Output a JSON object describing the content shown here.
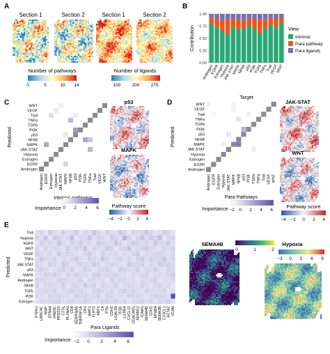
{
  "panels": {
    "A": {
      "letter": "A",
      "left_group": {
        "sections": [
          "Section 1",
          "Section 2"
        ],
        "legend_title": "Number of pathways",
        "ticks": [
          "0",
          "5",
          "10",
          "14"
        ]
      },
      "right_group": {
        "sections": [
          "Section 1",
          "Section 2"
        ],
        "legend_title": "Number of ligands",
        "ticks": [
          "100",
          "200",
          "275"
        ]
      },
      "colors": {
        "low": "#2c7bb6",
        "mid": "#ffffbf",
        "high": "#d7191c"
      }
    },
    "B": {
      "letter": "B"
    },
    "C": {
      "letter": "C",
      "maps": [
        "p53",
        "MAPK"
      ],
      "legend_title": "Importance",
      "ticks": [
        "0",
        "2",
        "4",
        "6"
      ]
    },
    "D": {
      "letter": "D",
      "maps": [
        "JAK-STAT",
        "WNT"
      ],
      "legend_title": "Importance",
      "ticks": [
        "−2",
        "0",
        "2",
        "4",
        "6"
      ]
    },
    "E": {
      "letter": "E",
      "maps": [
        "SEMA4B",
        "Hypoxia"
      ],
      "legend_title": "Importance",
      "ticks": [
        "−2",
        "0",
        "2",
        "4",
        "6"
      ]
    },
    "pathway_score": {
      "title": "Pathway score",
      "ticks": [
        "−4",
        "−2",
        "0",
        "2",
        "4"
      ]
    },
    "sema4b_scale": {
      "ticks": [
        "0",
        "1",
        "2"
      ]
    },
    "hypoxia_scale": {
      "ticks": [
        "−3",
        "0",
        "3",
        "6",
        "9"
      ]
    }
  },
  "chart_data": [
    {
      "type": "bar",
      "panel": "B",
      "stacked": true,
      "xlabel": "Target",
      "ylabel": "Contribution",
      "ylim": [
        0,
        1
      ],
      "yticks": [
        "0.00",
        "0.25",
        "0.50",
        "0.75",
        "1.00"
      ],
      "legend_title": "View",
      "legend_position": "right",
      "categories": [
        "Androgen",
        "EGFR",
        "Estrogen",
        "Hypoxia",
        "JAK.STAT",
        "MAPK",
        "NFkB",
        "p53",
        "PI3K",
        "TGFb",
        "TNFa",
        "Trail",
        "VEGF",
        "WNT"
      ],
      "series": [
        {
          "name": "Intrinsic",
          "color": "#2aa876",
          "values": [
            0.8,
            0.72,
            0.65,
            0.58,
            0.72,
            0.68,
            0.7,
            0.75,
            0.7,
            0.6,
            0.7,
            0.78,
            0.72,
            0.82
          ]
        },
        {
          "name": "Para pathway",
          "color": "#e8591e",
          "values": [
            0.12,
            0.18,
            0.22,
            0.3,
            0.18,
            0.2,
            0.18,
            0.15,
            0.2,
            0.28,
            0.18,
            0.14,
            0.18,
            0.1
          ]
        },
        {
          "name": "Para ligands",
          "color": "#7570b3",
          "values": [
            0.08,
            0.1,
            0.13,
            0.12,
            0.1,
            0.12,
            0.12,
            0.1,
            0.1,
            0.12,
            0.12,
            0.08,
            0.1,
            0.08
          ]
        }
      ]
    },
    {
      "type": "heatmap",
      "panel": "C",
      "xlabel": "Intrinsic pathways",
      "ylabel": "Predicted",
      "rows": [
        "WNT",
        "VEGF",
        "Trail",
        "TNFa",
        "TGFb",
        "PI3K",
        "p53",
        "NFkB",
        "MAPK",
        "JAK.STAT",
        "Hypoxia",
        "Estrogen",
        "EGFR",
        "Androgen"
      ],
      "columns": [
        "Androgen",
        "EGFR",
        "Estrogen",
        "Hypoxia",
        "JAK.STAT",
        "MAPK",
        "NFkB",
        "p53",
        "PI3K",
        "TGFb",
        "TNFa",
        "Trail",
        "VEGF",
        "WNT"
      ],
      "values": [
        [
          0,
          0,
          0,
          0,
          0.5,
          0,
          0,
          0,
          0,
          0,
          0,
          0,
          0,
          null
        ],
        [
          0,
          0,
          0,
          0.8,
          0,
          0,
          0,
          0,
          0,
          0,
          0,
          0,
          null,
          0
        ],
        [
          0,
          0,
          1.2,
          0,
          0,
          0,
          0,
          0.6,
          0,
          0,
          0,
          null,
          0,
          0
        ],
        [
          0,
          0,
          0,
          0,
          0,
          0,
          2.5,
          0,
          0,
          0,
          null,
          0,
          0,
          0
        ],
        [
          0,
          0,
          0,
          0,
          0,
          0,
          0,
          0,
          0,
          null,
          0,
          0,
          0,
          0
        ],
        [
          0,
          0,
          0,
          0,
          0,
          0,
          0,
          3.5,
          null,
          0,
          0,
          0,
          0,
          0
        ],
        [
          0,
          0,
          0,
          0,
          0,
          0.8,
          0,
          null,
          0,
          0,
          0,
          0,
          0,
          0
        ],
        [
          0,
          0,
          0,
          0,
          0,
          0,
          null,
          0,
          0,
          3.0,
          2.0,
          0,
          0,
          0
        ],
        [
          0,
          3.0,
          0,
          0,
          0,
          null,
          0,
          0,
          0,
          0,
          0,
          0,
          0,
          0
        ],
        [
          0,
          0,
          0,
          0,
          null,
          0,
          0,
          0,
          0,
          0,
          2.5,
          0,
          0,
          0
        ],
        [
          0,
          0,
          0,
          null,
          0,
          0,
          0,
          0,
          0,
          0,
          0,
          0,
          0,
          0
        ],
        [
          0,
          0,
          null,
          0,
          0,
          0,
          0,
          0,
          0,
          0,
          0,
          0,
          0,
          0
        ],
        [
          0,
          null,
          0,
          0,
          0,
          1.5,
          0,
          0,
          0,
          0,
          0,
          0,
          0,
          0
        ],
        [
          null,
          0,
          0,
          0,
          0,
          0,
          0,
          0,
          0,
          0,
          0,
          0,
          0,
          0
        ]
      ]
    },
    {
      "type": "heatmap",
      "panel": "D",
      "xlabel": "Para Pathways",
      "ylabel": "Predicted",
      "rows": [
        "WNT",
        "VEGF",
        "Trail",
        "TNFa",
        "TGFb",
        "PI3K",
        "p53",
        "NFkB",
        "MAPK",
        "JAK.STAT",
        "Hypoxia",
        "Estrogen",
        "EGFR",
        "Androgen"
      ],
      "columns": [
        "Androgen",
        "EGFR",
        "Estrogen",
        "Hypoxia",
        "JAK.STAT",
        "MAPK",
        "NFkB",
        "p53",
        "PI3K",
        "TGFb",
        "TNFa",
        "Trail",
        "VEGF",
        "WNT"
      ],
      "values": [
        [
          0.5,
          0,
          0,
          0,
          0,
          0.3,
          0,
          0,
          0,
          0,
          0,
          0,
          0,
          null
        ],
        [
          0,
          0,
          0,
          0,
          0,
          0.4,
          0,
          0,
          0,
          0,
          0,
          0,
          null,
          0
        ],
        [
          0,
          0.3,
          0,
          0,
          0,
          0,
          0,
          0,
          0.5,
          0,
          0,
          null,
          0,
          0
        ],
        [
          0,
          0,
          0,
          0,
          0,
          0,
          1.0,
          0,
          0,
          0,
          null,
          0,
          0,
          0
        ],
        [
          0,
          0,
          0,
          0,
          0,
          0,
          0,
          0,
          0,
          null,
          0,
          0,
          0,
          0
        ],
        [
          0,
          0,
          0,
          0,
          0,
          0,
          0,
          2.5,
          null,
          0,
          0,
          0,
          0,
          0
        ],
        [
          0,
          0,
          0,
          0,
          0.8,
          0,
          0,
          null,
          0,
          0,
          0,
          0,
          0,
          0
        ],
        [
          0,
          0,
          0,
          0,
          0,
          0,
          null,
          0,
          0,
          0,
          0,
          0,
          0,
          0
        ],
        [
          0,
          0,
          0,
          0.5,
          0,
          null,
          4.5,
          0,
          0,
          0,
          0,
          0,
          0,
          0
        ],
        [
          0,
          0,
          0,
          0,
          null,
          0,
          0,
          0,
          0,
          0.6,
          0,
          0,
          0,
          0
        ],
        [
          0,
          0,
          0,
          null,
          0,
          0,
          0,
          0,
          0,
          0,
          0,
          0,
          0,
          0
        ],
        [
          0,
          0,
          null,
          0,
          0,
          0,
          0,
          0,
          0,
          0,
          0,
          0,
          0,
          0
        ],
        [
          0,
          null,
          0,
          0,
          0,
          0,
          0,
          0,
          0,
          0,
          0,
          0,
          0,
          0
        ],
        [
          null,
          0,
          0,
          0,
          0,
          0,
          0,
          0,
          0,
          0,
          0,
          0,
          0,
          0
        ]
      ]
    },
    {
      "type": "heatmap",
      "panel": "E",
      "xlabel": "Para Ligands",
      "ylabel": "Predicted",
      "rows": [
        "Trail",
        "Hypoxia",
        "EGFR",
        "WNT",
        "VEGF",
        "TNFa",
        "JAK.STAT",
        "p53",
        "MAPK",
        "Androgen",
        "NFkB",
        "TGFb",
        "PI3K",
        "Estrogen"
      ],
      "columns": [
        "PTPRJ",
        "LRRC4C",
        "NIAF",
        "EFNA4",
        "FAM3C",
        "PRSS23",
        "CTSL",
        "PLXNA1",
        "CD4",
        "SERPINA5",
        "TNFRSF1A",
        "CR1",
        "NRP1",
        "FLRT3",
        "ARF1",
        "C4",
        "PTN",
        "CDH3",
        "LGALS9",
        "ITGB",
        "LILRB4",
        "CXCL12",
        "CEACAM1",
        "ADAM11",
        "ICAM1",
        "SEMA4B",
        "CDH1",
        "EPHB4",
        "SEMA3B",
        "CX3CL1",
        "ACTA2",
        "VCAN"
      ],
      "values": [
        [
          1.2,
          1.5,
          1.0,
          1.8,
          1.4,
          1.0,
          1.6,
          1.2,
          1.3,
          1.8,
          1.0,
          1.5,
          1.2,
          2.0,
          1.4,
          1.0,
          1.6,
          1.3,
          1.2,
          1.8,
          1.5,
          1.0,
          1.6,
          1.3,
          1.4,
          2.0,
          1.5,
          1.0,
          1.2,
          1.6,
          1.5,
          1.0
        ],
        [
          1.5,
          1.2,
          2.0,
          1.0,
          1.8,
          1.6,
          1.2,
          1.4,
          2.2,
          1.0,
          1.5,
          1.3,
          2.0,
          1.2,
          1.6,
          1.4,
          1.0,
          1.8,
          1.5,
          1.2,
          2.5,
          1.6,
          1.0,
          1.4,
          2.0,
          1.3,
          1.8,
          1.5,
          2.2,
          1.0,
          1.4,
          1.6
        ],
        [
          1.0,
          1.6,
          1.3,
          1.5,
          1.2,
          2.0,
          1.4,
          1.0,
          1.6,
          1.3,
          1.8,
          1.2,
          1.5,
          1.0,
          1.8,
          1.6,
          1.3,
          1.2,
          2.0,
          1.5,
          1.0,
          1.4,
          1.8,
          1.6,
          1.2,
          1.5,
          1.0,
          2.0,
          1.3,
          1.4,
          1.8,
          1.2
        ],
        [
          1.4,
          1.0,
          1.6,
          1.2,
          1.5,
          1.3,
          1.0,
          1.8,
          1.2,
          1.6,
          1.4,
          2.0,
          1.0,
          1.5,
          1.3,
          1.2,
          1.8,
          1.6,
          1.0,
          1.4,
          1.5,
          2.0,
          1.2,
          1.3,
          1.6,
          1.8,
          1.4,
          1.2,
          1.0,
          1.5,
          1.3,
          1.6
        ],
        [
          1.6,
          1.4,
          1.2,
          1.5,
          1.0,
          1.8,
          1.3,
          1.6,
          1.4,
          1.2,
          1.0,
          1.5,
          1.8,
          1.3,
          1.0,
          1.6,
          1.2,
          1.4,
          1.5,
          1.0,
          1.3,
          1.2,
          1.6,
          1.8,
          1.0,
          1.4,
          1.2,
          1.5,
          1.6,
          1.3,
          1.0,
          1.4
        ],
        [
          1.2,
          1.8,
          1.5,
          1.3,
          1.6,
          1.0,
          1.4,
          1.2,
          1.5,
          1.8,
          1.3,
          1.0,
          1.6,
          1.4,
          1.2,
          2.0,
          1.5,
          1.0,
          1.3,
          1.6,
          1.2,
          1.4,
          1.0,
          1.5,
          1.8,
          1.2,
          1.6,
          1.3,
          1.4,
          2.0,
          1.2,
          1.5
        ],
        [
          1.5,
          1.3,
          1.0,
          1.6,
          1.4,
          1.2,
          1.8,
          1.5,
          1.0,
          1.3,
          1.6,
          1.4,
          1.2,
          1.8,
          1.5,
          1.0,
          1.3,
          1.6,
          1.4,
          1.2,
          1.0,
          1.8,
          1.5,
          1.3,
          1.6,
          1.0,
          1.4,
          1.2,
          1.8,
          1.5,
          1.6,
          1.3
        ],
        [
          1.3,
          1.6,
          1.4,
          1.0,
          1.2,
          1.5,
          1.6,
          1.3,
          1.8,
          1.0,
          1.2,
          1.6,
          1.4,
          1.0,
          1.3,
          1.5,
          1.6,
          1.2,
          1.0,
          1.8,
          1.4,
          1.3,
          1.2,
          1.6,
          1.0,
          1.5,
          1.3,
          1.8,
          1.2,
          1.0,
          1.6,
          1.4
        ],
        [
          1.0,
          1.2,
          1.6,
          1.4,
          1.8,
          1.3,
          1.0,
          1.5,
          1.2,
          1.6,
          1.4,
          1.3,
          1.0,
          1.6,
          1.8,
          1.2,
          1.4,
          1.5,
          1.6,
          1.3,
          1.2,
          1.0,
          1.4,
          1.2,
          1.5,
          1.6,
          1.0,
          1.3,
          1.4,
          1.2,
          1.5,
          1.8
        ],
        [
          1.4,
          1.5,
          1.3,
          1.2,
          1.0,
          1.6,
          1.5,
          1.4,
          1.3,
          1.2,
          1.6,
          1.0,
          1.5,
          1.3,
          1.2,
          1.4,
          1.0,
          1.6,
          1.3,
          1.5,
          1.4,
          1.2,
          1.3,
          1.0,
          1.4,
          1.2,
          1.5,
          1.6,
          1.0,
          1.3,
          1.2,
          1.4
        ],
        [
          1.6,
          1.0,
          1.4,
          1.5,
          1.3,
          1.2,
          1.6,
          1.0,
          1.4,
          1.5,
          1.2,
          1.8,
          1.3,
          1.6,
          1.0,
          1.5,
          1.4,
          1.2,
          1.6,
          1.0,
          1.3,
          1.5,
          1.4,
          1.2,
          1.6,
          1.3,
          1.0,
          1.4,
          1.5,
          1.2,
          1.3,
          1.0
        ],
        [
          1.2,
          1.4,
          1.5,
          1.3,
          1.6,
          1.0,
          1.2,
          1.4,
          1.6,
          1.3,
          1.5,
          1.2,
          1.0,
          1.4,
          1.6,
          1.3,
          1.2,
          1.5,
          1.0,
          1.4,
          1.6,
          1.3,
          1.5,
          1.2,
          1.0,
          1.6,
          1.4,
          1.2,
          1.3,
          1.5,
          1.0,
          1.2
        ],
        [
          1.3,
          1.2,
          1.0,
          1.6,
          1.4,
          1.5,
          1.3,
          1.2,
          1.0,
          1.6,
          1.4,
          1.5,
          1.2,
          1.3,
          1.6,
          1.0,
          1.5,
          1.4,
          1.2,
          1.3,
          1.0,
          1.6,
          1.4,
          1.5,
          1.2,
          1.0,
          1.3,
          1.6,
          1.5,
          1.4,
          1.2,
          6.0
        ],
        [
          1.0,
          1.3,
          1.2,
          1.4,
          1.5,
          1.6,
          1.0,
          1.3,
          1.5,
          1.2,
          1.4,
          1.6,
          1.3,
          1.0,
          1.2,
          1.5,
          1.4,
          1.3,
          1.6,
          1.2,
          1.5,
          1.0,
          1.3,
          1.4,
          1.6,
          1.2,
          1.5,
          1.0,
          1.4,
          1.3,
          1.6,
          1.2
        ]
      ]
    }
  ]
}
